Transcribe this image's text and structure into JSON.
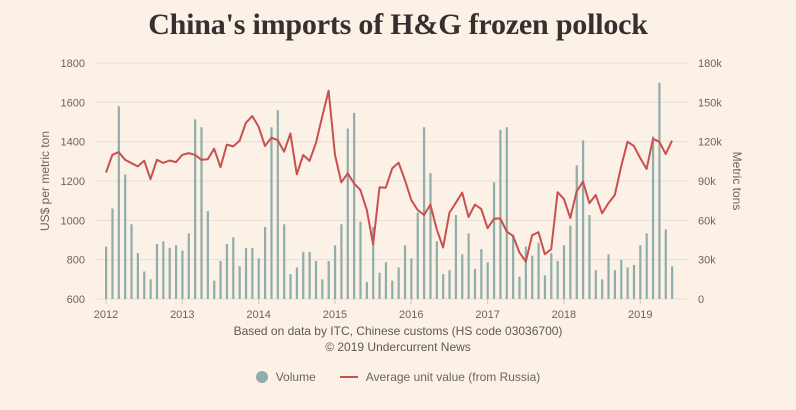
{
  "title": "China's imports of H&G frozen pollock",
  "source_line1": "Based on data by ITC, Chinese customs (HS code 03036700)",
  "source_line2": "© 2019 Undercurrent News",
  "colors": {
    "background": "#fcf1e6",
    "bars": "#8fadaa",
    "line": "#c8504f",
    "grid": "#e8dfd5"
  },
  "legend": [
    {
      "label": "Volume",
      "marker": "circle",
      "color": "#8fadaa"
    },
    {
      "label": "Average unit value (from Russia)",
      "marker": "line",
      "color": "#c8504f"
    }
  ],
  "chart_data": {
    "type": "bar+line",
    "title": "China's imports of H&G frozen pollock",
    "x_tick_labels": [
      "2012",
      "2013",
      "2014",
      "2015",
      "2016",
      "2017",
      "2018",
      "2019"
    ],
    "start": "2012-01",
    "frequency": "monthly",
    "left_axis": {
      "label": "US$ per metric ton",
      "range": [
        600,
        1800
      ],
      "ticks": [
        "600",
        "800",
        "1000",
        "1200",
        "1400",
        "1600",
        "1800"
      ],
      "tick_values": [
        600,
        800,
        1000,
        1200,
        1400,
        1600,
        1800
      ]
    },
    "right_axis": {
      "label": "Metric tons",
      "range": [
        0,
        180000
      ],
      "ticks": [
        "0",
        "30k",
        "60k",
        "90k",
        "120k",
        "150k",
        "180k"
      ],
      "tick_values": [
        0,
        30000,
        60000,
        90000,
        120000,
        150000,
        180000
      ]
    },
    "grid": true,
    "legend_position": "bottom",
    "series": [
      {
        "name": "Volume",
        "type": "bar",
        "axis": "right",
        "unit": "metric tons",
        "values": [
          40000,
          69000,
          147000,
          95000,
          57000,
          35000,
          21000,
          15000,
          42000,
          44000,
          39000,
          41000,
          37000,
          50000,
          137000,
          131000,
          67000,
          14000,
          29000,
          42000,
          47000,
          25000,
          39000,
          39000,
          31000,
          55000,
          131000,
          144000,
          57000,
          19000,
          24000,
          36000,
          36000,
          29000,
          15000,
          29000,
          41000,
          57000,
          130000,
          142000,
          59000,
          13000,
          55000,
          20000,
          28000,
          14000,
          24000,
          41000,
          31000,
          66000,
          131000,
          96000,
          44000,
          19000,
          22000,
          64000,
          34000,
          50000,
          23000,
          38000,
          28000,
          89000,
          129000,
          131000,
          49000,
          17000,
          40000,
          33000,
          43000,
          18000,
          35000,
          29000,
          41000,
          56000,
          102000,
          121000,
          64000,
          22000,
          15000,
          34000,
          22000,
          30000,
          24000,
          26000,
          41000,
          50000,
          124000,
          165000,
          53000,
          25000
        ]
      },
      {
        "name": "Average unit value (from Russia)",
        "type": "line",
        "axis": "left",
        "unit": "US$ per metric ton",
        "values": [
          1243,
          1333,
          1347,
          1308,
          1291,
          1274,
          1303,
          1209,
          1308,
          1292,
          1304,
          1296,
          1333,
          1342,
          1333,
          1308,
          1311,
          1364,
          1270,
          1385,
          1376,
          1405,
          1496,
          1530,
          1476,
          1378,
          1420,
          1408,
          1349,
          1442,
          1234,
          1332,
          1302,
          1392,
          1527,
          1659,
          1332,
          1193,
          1239,
          1188,
          1154,
          1053,
          878,
          1168,
          1166,
          1264,
          1293,
          1205,
          1103,
          1053,
          1027,
          1080,
          955,
          862,
          1038,
          1089,
          1141,
          1017,
          1080,
          1058,
          960,
          1008,
          1010,
          943,
          921,
          837,
          790,
          924,
          940,
          828,
          853,
          1143,
          1109,
          1012,
          1147,
          1197,
          1087,
          1129,
          1036,
          1087,
          1129,
          1274,
          1400,
          1378,
          1317,
          1261,
          1414,
          1400,
          1337,
          1405
        ]
      }
    ]
  }
}
